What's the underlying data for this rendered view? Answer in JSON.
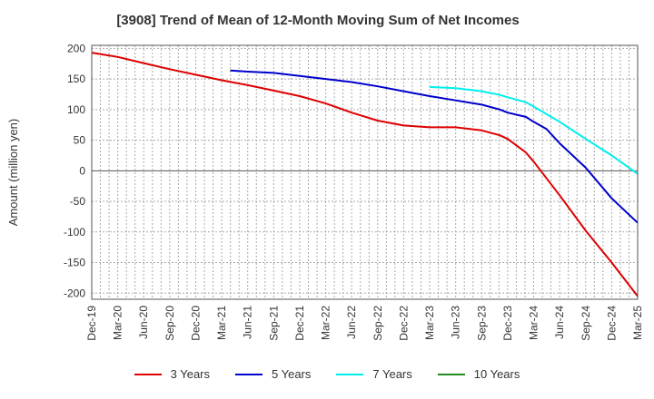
{
  "chart_data": {
    "type": "line",
    "title": "[3908]  Trend of Mean of 12-Month Moving Sum of Net Incomes",
    "ylabel": "Amount (million yen)",
    "xlabel": "",
    "ylim": [
      -210,
      205
    ],
    "yticks": [
      200,
      150,
      100,
      50,
      0,
      -50,
      -100,
      -150,
      -200
    ],
    "xticks": [
      "Dec-19",
      "Mar-20",
      "Jun-20",
      "Sep-20",
      "Dec-20",
      "Mar-21",
      "Jun-21",
      "Sep-21",
      "Dec-21",
      "Mar-22",
      "Jun-22",
      "Sep-22",
      "Dec-22",
      "Mar-23",
      "Jun-23",
      "Sep-23",
      "Dec-23",
      "Mar-24",
      "Jun-24",
      "Sep-24",
      "Dec-24",
      "Mar-25"
    ],
    "grid": true,
    "legend_position": "bottom",
    "series": [
      {
        "name": "3 Years",
        "color": "#dd0000",
        "points": [
          [
            0,
            193
          ],
          [
            1,
            186
          ],
          [
            2,
            176
          ],
          [
            3,
            166
          ],
          [
            4,
            157
          ],
          [
            5,
            148
          ],
          [
            6,
            140
          ],
          [
            7,
            131
          ],
          [
            8,
            122
          ],
          [
            9,
            110
          ],
          [
            10,
            95
          ],
          [
            11,
            82
          ],
          [
            12,
            74
          ],
          [
            13,
            71
          ],
          [
            14,
            71
          ],
          [
            15,
            66
          ],
          [
            15.7,
            58
          ],
          [
            16,
            52
          ],
          [
            16.7,
            30
          ],
          [
            17,
            15
          ],
          [
            18,
            -40
          ],
          [
            19,
            -98
          ],
          [
            20,
            -150
          ],
          [
            21,
            -205
          ]
        ]
      },
      {
        "name": "5 Years",
        "color": "#0000cc",
        "points": [
          [
            5.33,
            164
          ],
          [
            6,
            162
          ],
          [
            7,
            160
          ],
          [
            8,
            155
          ],
          [
            9,
            150
          ],
          [
            10,
            145
          ],
          [
            11,
            138
          ],
          [
            12,
            130
          ],
          [
            13,
            122
          ],
          [
            14,
            115
          ],
          [
            15,
            108
          ],
          [
            15.7,
            100
          ],
          [
            16,
            95
          ],
          [
            16.7,
            88
          ],
          [
            17,
            80
          ],
          [
            17.5,
            68
          ],
          [
            18,
            45
          ],
          [
            19,
            5
          ],
          [
            20,
            -45
          ],
          [
            21,
            -85
          ]
        ]
      },
      {
        "name": "7 Years",
        "color": "#00eeee",
        "points": [
          [
            13,
            137
          ],
          [
            14,
            135
          ],
          [
            15,
            130
          ],
          [
            15.7,
            124
          ],
          [
            16,
            120
          ],
          [
            16.7,
            112
          ],
          [
            17,
            105
          ],
          [
            18,
            80
          ],
          [
            19,
            52
          ],
          [
            20,
            25
          ],
          [
            21,
            -5
          ]
        ]
      },
      {
        "name": "10 Years",
        "color": "#228b22",
        "points": []
      }
    ]
  }
}
